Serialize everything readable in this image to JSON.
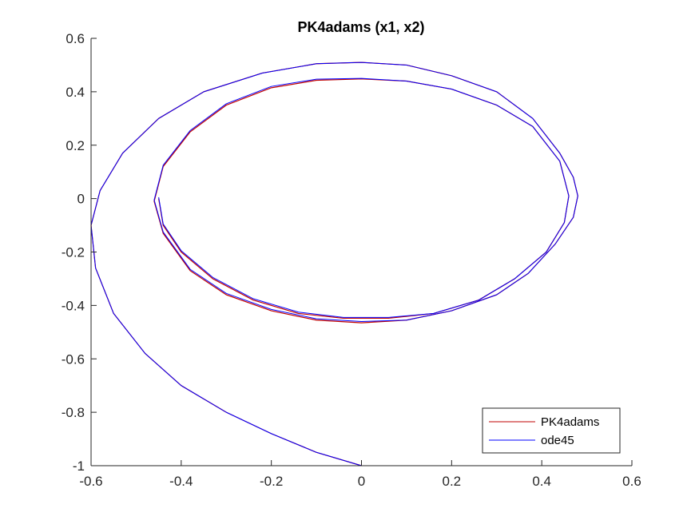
{
  "chart_data": {
    "type": "line",
    "title": "PK4adams (x1, x2)",
    "xlabel": "",
    "ylabel": "",
    "xlim": [
      -0.6,
      0.6
    ],
    "ylim": [
      -1,
      0.6
    ],
    "xticks": [
      -0.6,
      -0.4,
      -0.2,
      0,
      0.2,
      0.4,
      0.6
    ],
    "xtick_labels": [
      "-0.6",
      "-0.4",
      "-0.2",
      "0",
      "0.2",
      "0.4",
      "0.6"
    ],
    "yticks": [
      -1,
      -0.8,
      -0.6,
      -0.4,
      -0.2,
      0,
      0.2,
      0.4,
      0.6
    ],
    "ytick_labels": [
      "-1",
      "-0.8",
      "-0.6",
      "-0.4",
      "-0.2",
      "0",
      "0.2",
      "0.4",
      "0.6"
    ],
    "grid": false,
    "legend_position": "bottom-right",
    "series": [
      {
        "name": "PK4adams",
        "color": "#c00000",
        "x": [
          0,
          -0.1,
          -0.2,
          -0.3,
          -0.4,
          -0.48,
          -0.55,
          -0.59,
          -0.6,
          -0.58,
          -0.53,
          -0.45,
          -0.35,
          -0.22,
          -0.1,
          0,
          0.1,
          0.2,
          0.3,
          0.38,
          0.44,
          0.47,
          0.48,
          0.47,
          0.43,
          0.37,
          0.3,
          0.2,
          0.1,
          0,
          -0.1,
          -0.2,
          -0.3,
          -0.38,
          -0.44,
          -0.46,
          -0.44,
          -0.38,
          -0.3,
          -0.2,
          -0.1,
          0,
          0.1,
          0.2,
          0.3,
          0.38,
          0.44,
          0.46,
          0.45,
          0.41,
          0.34,
          0.26,
          0.16,
          0.06,
          -0.04,
          -0.14,
          -0.24,
          -0.33,
          -0.4,
          -0.44,
          -0.45
        ],
        "y": [
          -1,
          -0.95,
          -0.88,
          -0.8,
          -0.7,
          -0.58,
          -0.43,
          -0.26,
          -0.1,
          0.03,
          0.17,
          0.3,
          0.4,
          0.47,
          0.505,
          0.51,
          0.5,
          0.46,
          0.4,
          0.3,
          0.17,
          0.08,
          0.01,
          -0.07,
          -0.17,
          -0.28,
          -0.36,
          -0.42,
          -0.455,
          -0.465,
          -0.455,
          -0.42,
          -0.36,
          -0.27,
          -0.13,
          -0.01,
          0.12,
          0.25,
          0.35,
          0.415,
          0.443,
          0.448,
          0.44,
          0.41,
          0.35,
          0.27,
          0.14,
          0.01,
          -0.09,
          -0.2,
          -0.3,
          -0.38,
          -0.43,
          -0.448,
          -0.448,
          -0.43,
          -0.38,
          -0.3,
          -0.2,
          -0.1,
          0.0
        ]
      },
      {
        "name": "ode45",
        "color": "#0000ff",
        "x": [
          0,
          -0.1,
          -0.2,
          -0.3,
          -0.4,
          -0.48,
          -0.55,
          -0.59,
          -0.6,
          -0.58,
          -0.53,
          -0.45,
          -0.35,
          -0.22,
          -0.1,
          0,
          0.1,
          0.2,
          0.3,
          0.38,
          0.44,
          0.47,
          0.48,
          0.47,
          0.43,
          0.37,
          0.3,
          0.2,
          0.1,
          0,
          -0.1,
          -0.2,
          -0.3,
          -0.38,
          -0.44,
          -0.46,
          -0.44,
          -0.38,
          -0.3,
          -0.2,
          -0.1,
          0,
          0.1,
          0.2,
          0.3,
          0.38,
          0.44,
          0.46,
          0.45,
          0.41,
          0.34,
          0.26,
          0.16,
          0.06,
          -0.04,
          -0.14,
          -0.24,
          -0.33,
          -0.4,
          -0.44,
          -0.45
        ],
        "y": [
          -1,
          -0.95,
          -0.88,
          -0.8,
          -0.7,
          -0.58,
          -0.43,
          -0.26,
          -0.1,
          0.03,
          0.17,
          0.3,
          0.4,
          0.47,
          0.505,
          0.51,
          0.5,
          0.46,
          0.4,
          0.3,
          0.17,
          0.08,
          0.01,
          -0.07,
          -0.17,
          -0.28,
          -0.36,
          -0.42,
          -0.455,
          -0.46,
          -0.45,
          -0.415,
          -0.355,
          -0.265,
          -0.125,
          -0.005,
          0.125,
          0.255,
          0.355,
          0.42,
          0.447,
          0.45,
          0.44,
          0.41,
          0.35,
          0.27,
          0.14,
          0.01,
          -0.09,
          -0.2,
          -0.3,
          -0.38,
          -0.43,
          -0.445,
          -0.445,
          -0.425,
          -0.375,
          -0.295,
          -0.195,
          -0.095,
          0.005
        ]
      }
    ]
  }
}
